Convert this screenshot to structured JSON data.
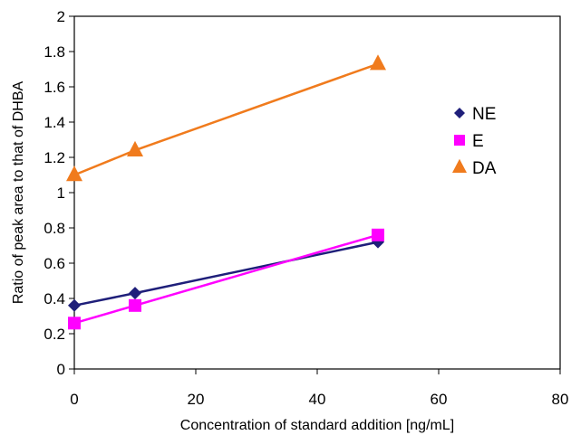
{
  "chart_data": {
    "type": "line",
    "title": "",
    "xlabel": "Concentration of standard addition  [ng/mL]",
    "ylabel": "Ratio of peak area to that of DHBA",
    "xlim": [
      0,
      80
    ],
    "ylim": [
      0,
      2
    ],
    "x_ticks": [
      "0",
      "20",
      "40",
      "60",
      "80"
    ],
    "y_ticks": [
      "0",
      "0.2",
      "0.4",
      "0.6",
      "0.8",
      "1",
      "1.2",
      "1.4",
      "1.6",
      "1.8",
      "2"
    ],
    "grid": false,
    "legend_position": "right",
    "series": [
      {
        "name": "NE",
        "marker": "diamond",
        "color": "#1f1f7a",
        "x": [
          0,
          10,
          50
        ],
        "y": [
          0.36,
          0.43,
          0.72
        ]
      },
      {
        "name": "E",
        "marker": "square",
        "color": "#ff00ff",
        "x": [
          0,
          10,
          50
        ],
        "y": [
          0.26,
          0.36,
          0.76
        ]
      },
      {
        "name": "DA",
        "marker": "triangle",
        "color": "#f07b1d",
        "x": [
          0,
          10,
          50
        ],
        "y": [
          1.1,
          1.24,
          1.73
        ]
      }
    ]
  }
}
